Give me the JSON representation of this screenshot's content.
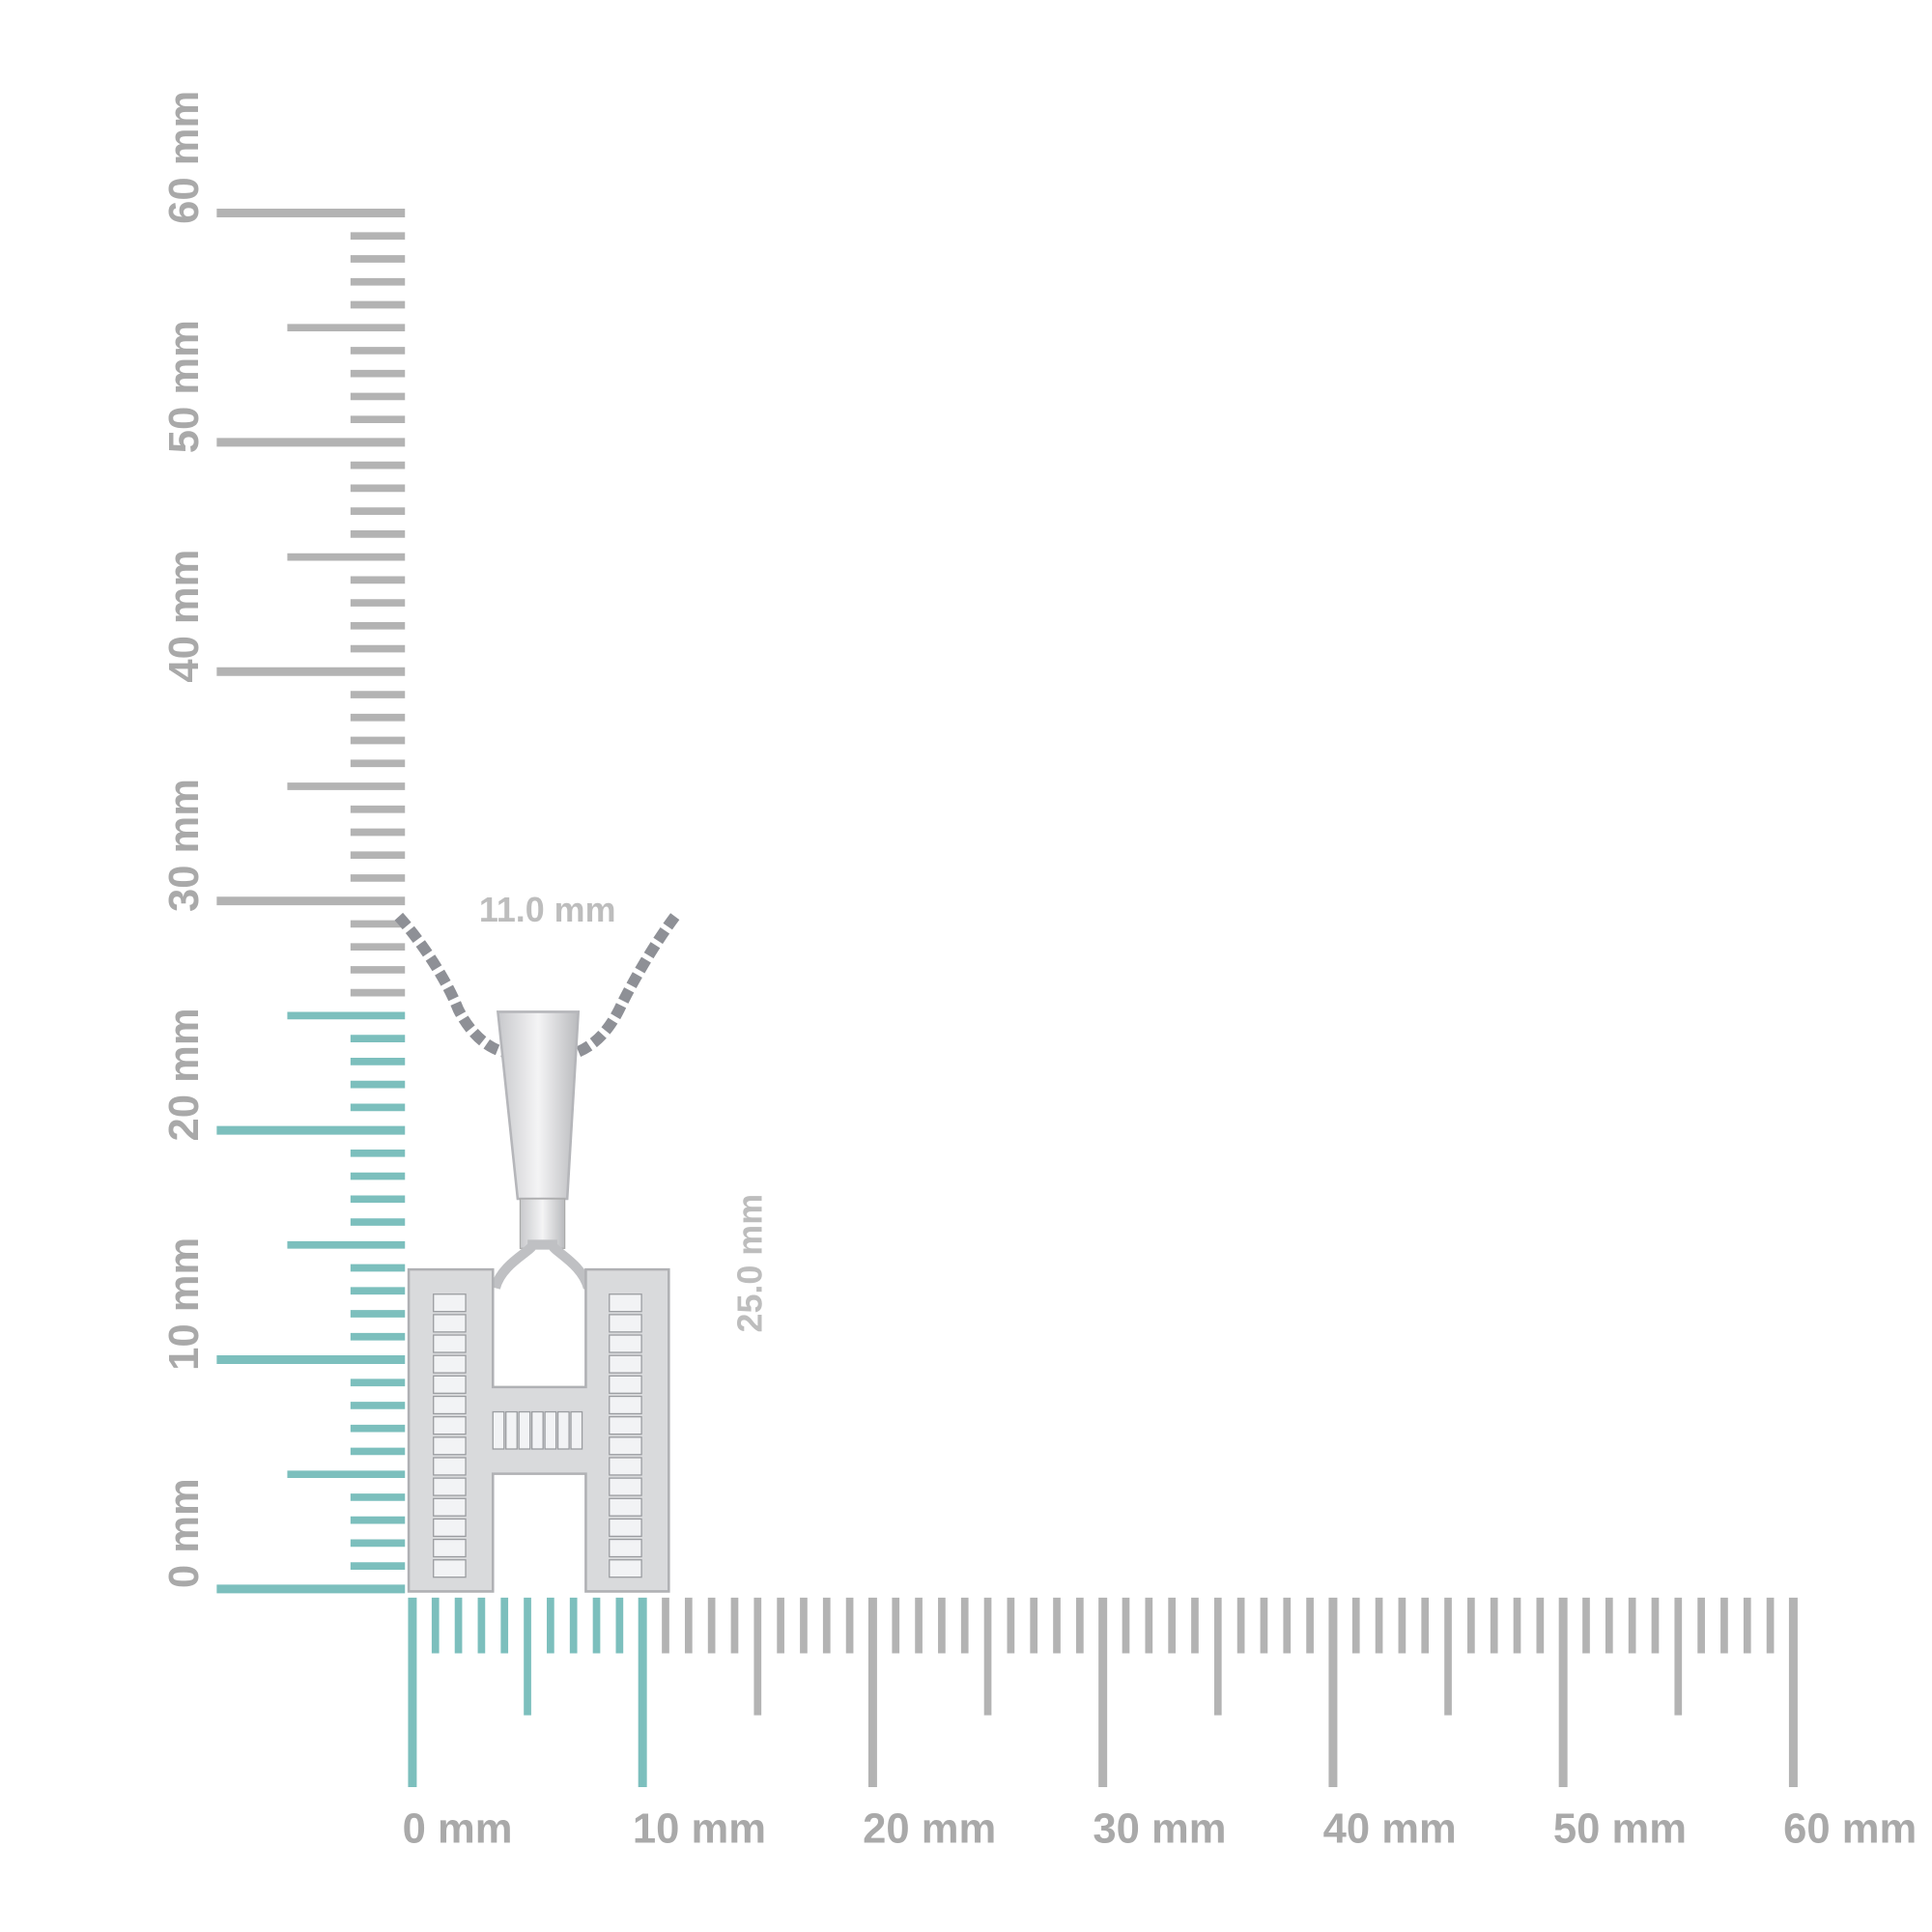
{
  "vertical_ruler": {
    "labels": [
      "0 mm",
      "10 mm",
      "20 mm",
      "30 mm",
      "40 mm",
      "50 mm",
      "60 mm"
    ]
  },
  "horizontal_ruler": {
    "labels": [
      "0 mm",
      "10 mm",
      "20 mm",
      "30 mm",
      "40 mm",
      "50 mm",
      "60 mm"
    ]
  },
  "dimensions": {
    "width": "11.0 mm",
    "height": "25.0 mm"
  }
}
